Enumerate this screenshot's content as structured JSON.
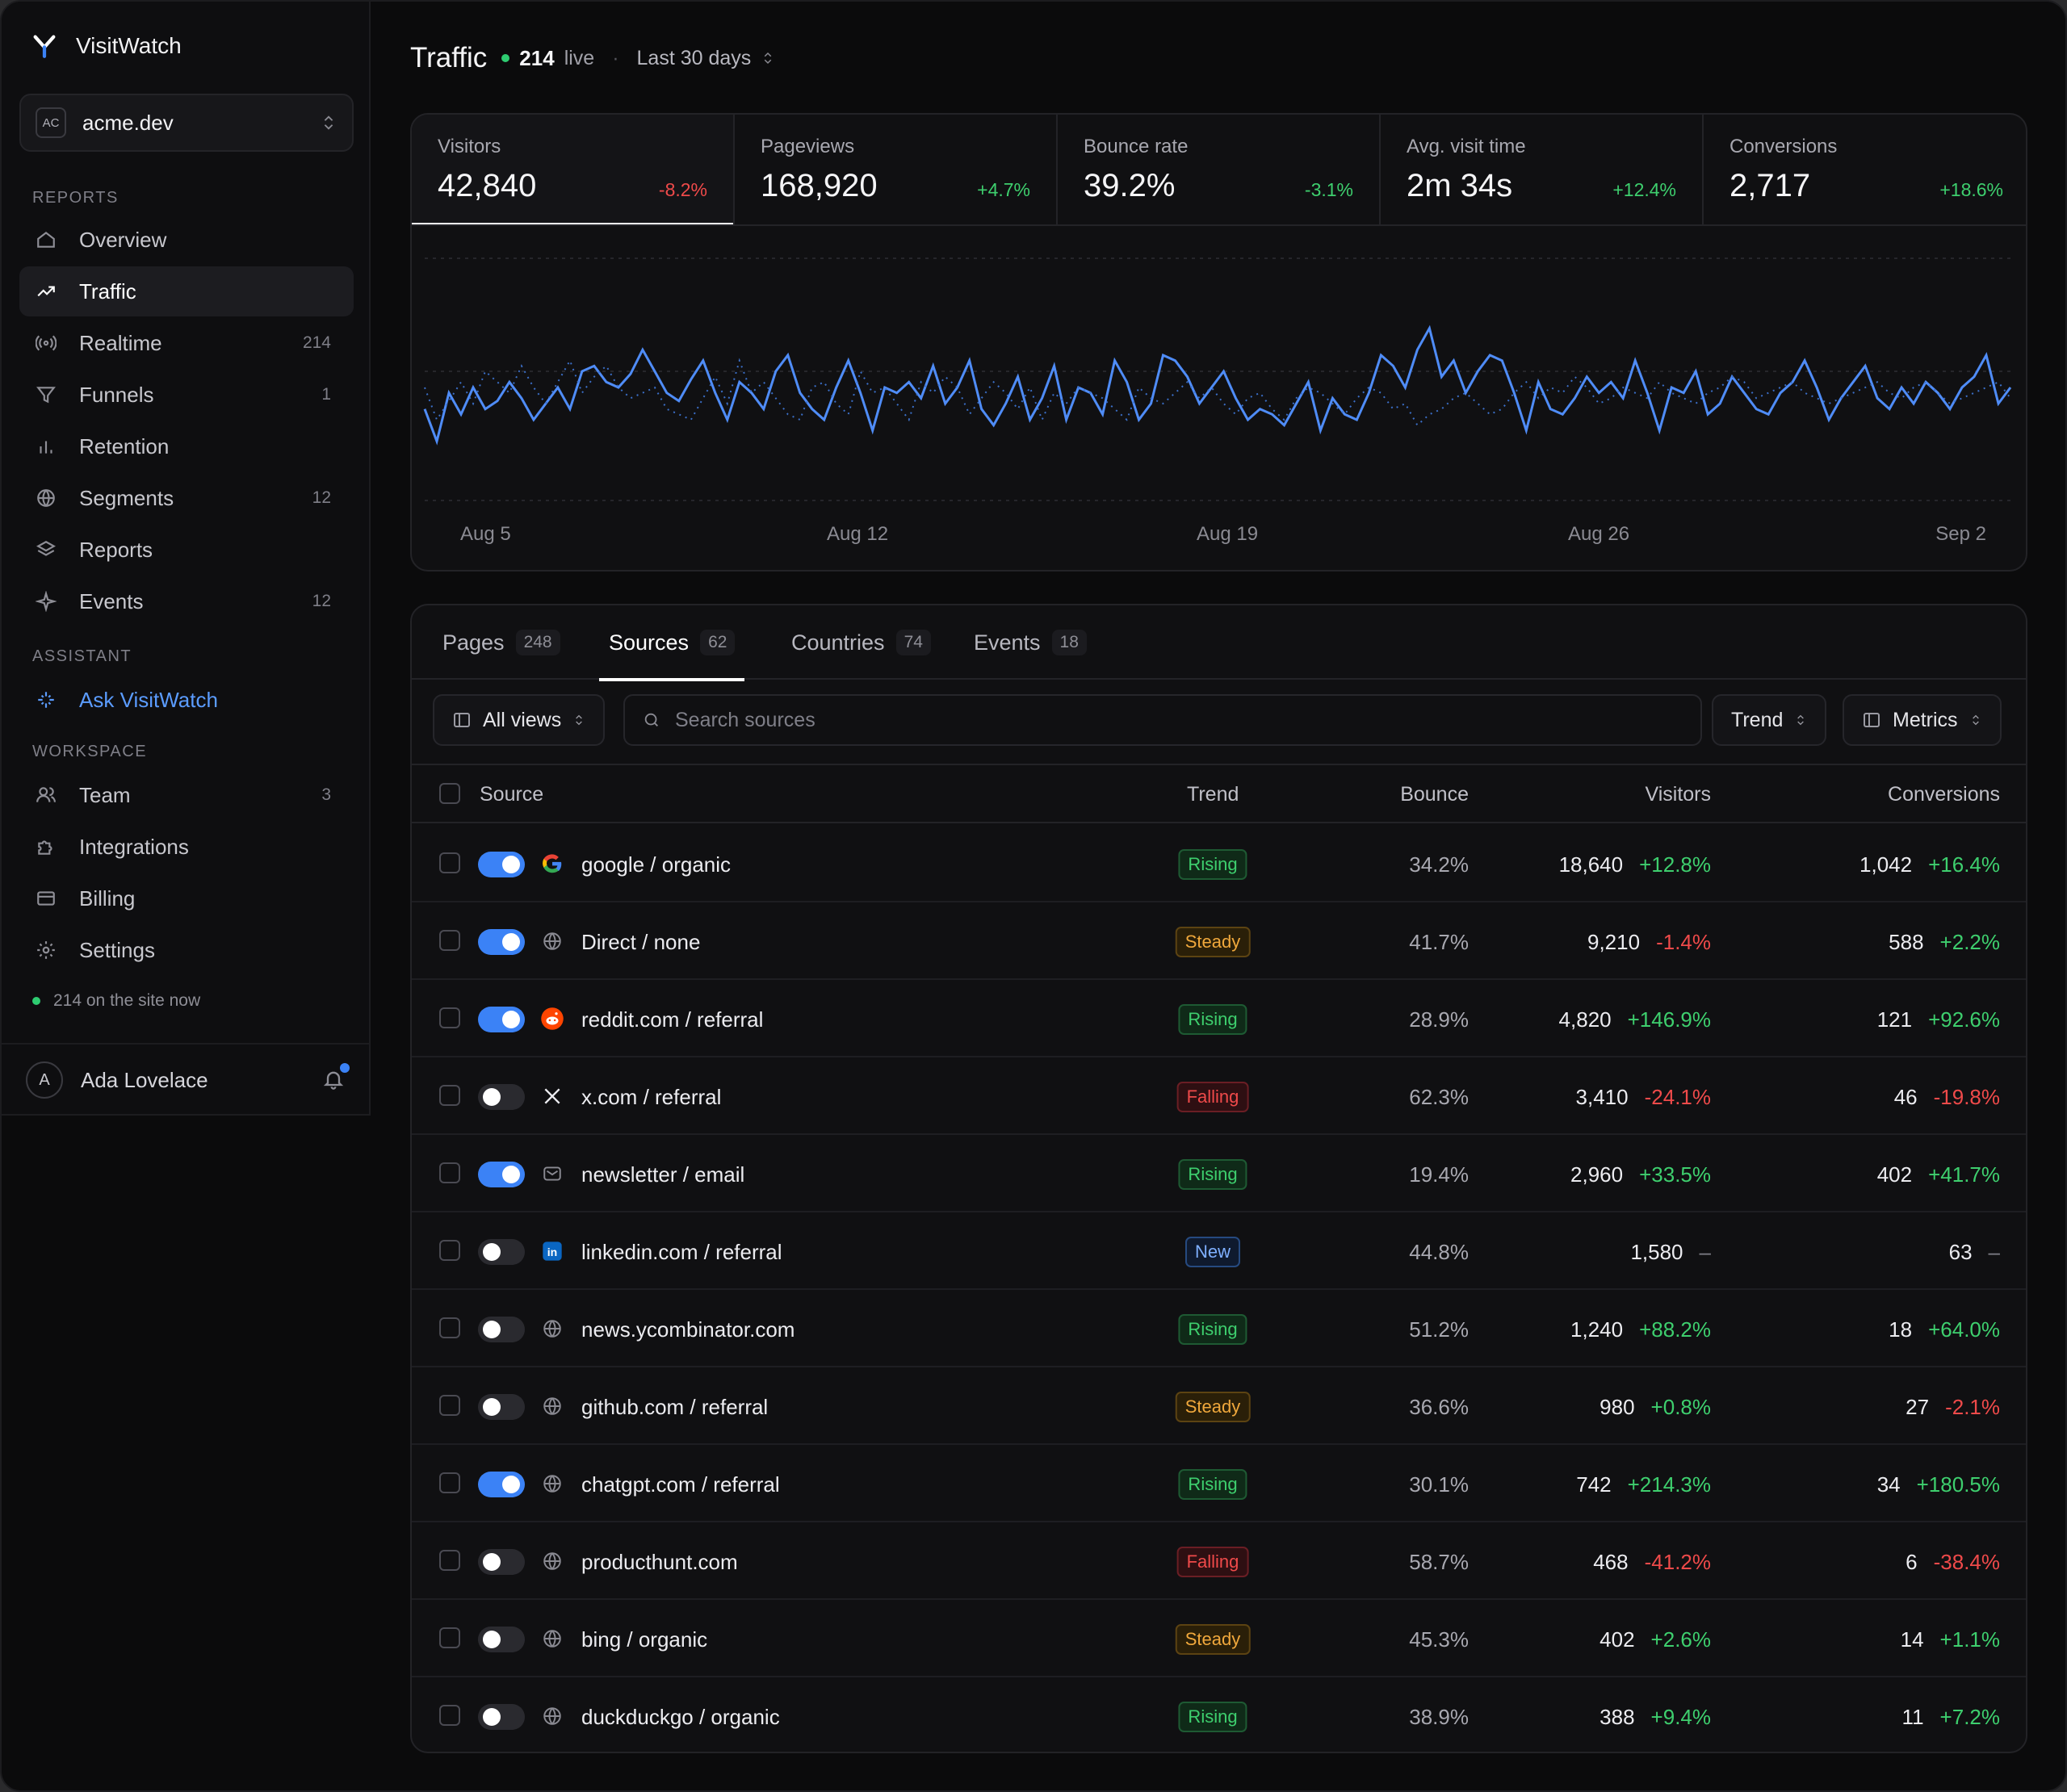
{
  "app": {
    "name": "VisitWatch"
  },
  "workspace": {
    "badge": "AC",
    "name": "acme.dev"
  },
  "sidebar": {
    "reports_label": "REPORTS",
    "assistant_label": "ASSISTANT",
    "workspace_label": "WORKSPACE",
    "reports": [
      {
        "label": "Overview",
        "count": "",
        "icon": "home-icon"
      },
      {
        "label": "Traffic",
        "count": "",
        "icon": "trend-up-icon"
      },
      {
        "label": "Realtime",
        "count": "214",
        "icon": "broadcast-icon"
      },
      {
        "label": "Funnels",
        "count": "1",
        "icon": "funnel-icon"
      },
      {
        "label": "Retention",
        "count": "",
        "icon": "bar-chart-icon"
      },
      {
        "label": "Segments",
        "count": "12",
        "icon": "globe-icon"
      },
      {
        "label": "Reports",
        "count": "",
        "icon": "layers-icon"
      },
      {
        "label": "Events",
        "count": "12",
        "icon": "sparkle-icon"
      }
    ],
    "ask": {
      "label": "Ask VisitWatch",
      "icon": "sparkle-icon"
    },
    "workspace_items": [
      {
        "label": "Team",
        "count": "3",
        "icon": "users-icon"
      },
      {
        "label": "Integrations",
        "count": "",
        "icon": "puzzle-icon"
      },
      {
        "label": "Billing",
        "count": "",
        "icon": "card-icon"
      },
      {
        "label": "Settings",
        "count": "",
        "icon": "gear-icon"
      }
    ],
    "live_now": "214 on the site now",
    "user": {
      "initial": "A",
      "name": "Ada Lovelace"
    }
  },
  "header": {
    "title": "Traffic",
    "live_count": "214",
    "live_label": "live",
    "range": "Last 30 days"
  },
  "stats": [
    {
      "label": "Visitors",
      "value": "42,840",
      "delta": "-8.2%",
      "dir": "neg"
    },
    {
      "label": "Pageviews",
      "value": "168,920",
      "delta": "+4.7%",
      "dir": "pos"
    },
    {
      "label": "Bounce rate",
      "value": "39.2%",
      "delta": "-3.1%",
      "dir": "pos"
    },
    {
      "label": "Avg. visit time",
      "value": "2m 34s",
      "delta": "+12.4%",
      "dir": "pos"
    },
    {
      "label": "Conversions",
      "value": "2,717",
      "delta": "+18.6%",
      "dir": "pos"
    }
  ],
  "chart_data": {
    "type": "line",
    "x_ticks": [
      "Aug 5",
      "Aug 12",
      "Aug 19",
      "Aug 26",
      "Sep 2"
    ],
    "grid": true,
    "series": [
      {
        "values": [
          52,
          40,
          58,
          50,
          60,
          52,
          55,
          62,
          56,
          48,
          54,
          60,
          52,
          66,
          68,
          62,
          60,
          65,
          74,
          66,
          58,
          55,
          63,
          70,
          58,
          48,
          62,
          58,
          52,
          66,
          72,
          58,
          52,
          48,
          60,
          70,
          58,
          44,
          60,
          58,
          62,
          56,
          68,
          54,
          60,
          70,
          52,
          46,
          54,
          64,
          48,
          56,
          68,
          48,
          60,
          58,
          50,
          70,
          62,
          48,
          54,
          72,
          70,
          64,
          54,
          60,
          66,
          56,
          48,
          52,
          50,
          46,
          54,
          62,
          44,
          56,
          50,
          48,
          58,
          72,
          68,
          60,
          74,
          82,
          64,
          70,
          58,
          66,
          72,
          70,
          58,
          44,
          62,
          52,
          50,
          56,
          64,
          58,
          62,
          56,
          70,
          58,
          44,
          60,
          58,
          66,
          50,
          54,
          64,
          58,
          52,
          50,
          58,
          62,
          70,
          60,
          48,
          56,
          62,
          68,
          56,
          52,
          60,
          54,
          62,
          58,
          52,
          60,
          64,
          72,
          54,
          60
        ]
      },
      {
        "values": [
          60,
          48,
          55,
          62,
          54,
          66,
          62,
          58,
          68,
          60,
          54,
          62,
          70,
          58,
          64,
          68,
          60,
          56,
          58,
          60,
          52,
          50,
          48,
          56,
          64,
          54,
          70,
          58,
          62,
          56,
          50,
          48,
          60,
          62,
          54,
          50,
          66,
          58,
          60,
          54,
          48,
          62,
          58,
          64,
          60,
          50,
          56,
          62,
          58,
          52,
          60,
          48,
          58,
          54,
          60,
          58,
          56,
          52,
          48,
          60,
          56,
          54,
          58,
          62,
          56,
          60,
          54,
          50,
          56,
          58,
          52,
          48,
          56,
          60,
          58,
          54,
          50,
          56,
          60,
          58,
          52,
          54,
          46,
          50,
          52,
          56,
          58,
          54,
          50,
          52,
          58,
          62,
          56,
          60,
          58,
          64,
          60,
          54,
          56,
          60,
          58,
          56,
          62,
          58,
          56,
          54,
          58,
          60,
          64,
          62,
          56,
          58,
          60,
          62,
          58,
          56,
          54,
          56,
          58,
          60,
          62,
          58,
          56,
          60,
          62,
          58,
          54,
          56,
          58,
          60,
          62,
          56
        ]
      }
    ]
  },
  "tabs": [
    {
      "label": "Pages",
      "count": "248"
    },
    {
      "label": "Sources",
      "count": "62"
    },
    {
      "label": "Countries",
      "count": "74"
    },
    {
      "label": "Events",
      "count": "18"
    }
  ],
  "toolbar": {
    "views": "All views",
    "search_placeholder": "Search sources",
    "trend": "Trend",
    "metrics": "Metrics"
  },
  "table": {
    "columns": {
      "source": "Source",
      "trend": "Trend",
      "bounce": "Bounce",
      "visitors": "Visitors",
      "conversions": "Conversions"
    },
    "rows": [
      {
        "on": true,
        "icon": "google-icon",
        "source": "google / organic",
        "trend": "Rising",
        "bounce": "34.2%",
        "visitors": "18,640",
        "v_delta": "+12.8%",
        "v_dir": "pos",
        "conv": "1,042",
        "c_delta": "+16.4%",
        "c_dir": "pos"
      },
      {
        "on": true,
        "icon": "globe-icon",
        "source": "Direct / none",
        "trend": "Steady",
        "bounce": "41.7%",
        "visitors": "9,210",
        "v_delta": "-1.4%",
        "v_dir": "neg",
        "conv": "588",
        "c_delta": "+2.2%",
        "c_dir": "pos"
      },
      {
        "on": true,
        "icon": "reddit-icon",
        "source": "reddit.com / referral",
        "trend": "Rising",
        "bounce": "28.9%",
        "visitors": "4,820",
        "v_delta": "+146.9%",
        "v_dir": "pos",
        "conv": "121",
        "c_delta": "+92.6%",
        "c_dir": "pos"
      },
      {
        "on": false,
        "icon": "x-icon",
        "source": "x.com / referral",
        "trend": "Falling",
        "bounce": "62.3%",
        "visitors": "3,410",
        "v_delta": "-24.1%",
        "v_dir": "neg",
        "conv": "46",
        "c_delta": "-19.8%",
        "c_dir": "neg"
      },
      {
        "on": true,
        "icon": "mail-icon",
        "source": "newsletter / email",
        "trend": "Rising",
        "bounce": "19.4%",
        "visitors": "2,960",
        "v_delta": "+33.5%",
        "v_dir": "pos",
        "conv": "402",
        "c_delta": "+41.7%",
        "c_dir": "pos"
      },
      {
        "on": false,
        "icon": "linkedin-icon",
        "source": "linkedin.com / referral",
        "trend": "New",
        "bounce": "44.8%",
        "visitors": "1,580",
        "v_delta": "–",
        "v_dir": "muted",
        "conv": "63",
        "c_delta": "–",
        "c_dir": "muted"
      },
      {
        "on": false,
        "icon": "globe-icon",
        "source": "news.ycombinator.com",
        "trend": "Rising",
        "bounce": "51.2%",
        "visitors": "1,240",
        "v_delta": "+88.2%",
        "v_dir": "pos",
        "conv": "18",
        "c_delta": "+64.0%",
        "c_dir": "pos"
      },
      {
        "on": false,
        "icon": "globe-icon",
        "source": "github.com / referral",
        "trend": "Steady",
        "bounce": "36.6%",
        "visitors": "980",
        "v_delta": "+0.8%",
        "v_dir": "pos",
        "conv": "27",
        "c_delta": "-2.1%",
        "c_dir": "neg"
      },
      {
        "on": true,
        "icon": "globe-icon",
        "source": "chatgpt.com / referral",
        "trend": "Rising",
        "bounce": "30.1%",
        "visitors": "742",
        "v_delta": "+214.3%",
        "v_dir": "pos",
        "conv": "34",
        "c_delta": "+180.5%",
        "c_dir": "pos"
      },
      {
        "on": false,
        "icon": "globe-icon",
        "source": "producthunt.com",
        "trend": "Falling",
        "bounce": "58.7%",
        "visitors": "468",
        "v_delta": "-41.2%",
        "v_dir": "neg",
        "conv": "6",
        "c_delta": "-38.4%",
        "c_dir": "neg"
      },
      {
        "on": false,
        "icon": "globe-icon",
        "source": "bing / organic",
        "trend": "Steady",
        "bounce": "45.3%",
        "visitors": "402",
        "v_delta": "+2.6%",
        "v_dir": "pos",
        "conv": "14",
        "c_delta": "+1.1%",
        "c_dir": "pos"
      },
      {
        "on": false,
        "icon": "globe-icon",
        "source": "duckduckgo / organic",
        "trend": "Rising",
        "bounce": "38.9%",
        "visitors": "388",
        "v_delta": "+9.4%",
        "v_dir": "pos",
        "conv": "11",
        "c_delta": "+7.2%",
        "c_dir": "pos"
      }
    ]
  },
  "colors": {
    "accent": "#3b82f6",
    "positive": "#3ecf6e",
    "negative": "#ef4a4a",
    "line": "#4f8cf7"
  }
}
